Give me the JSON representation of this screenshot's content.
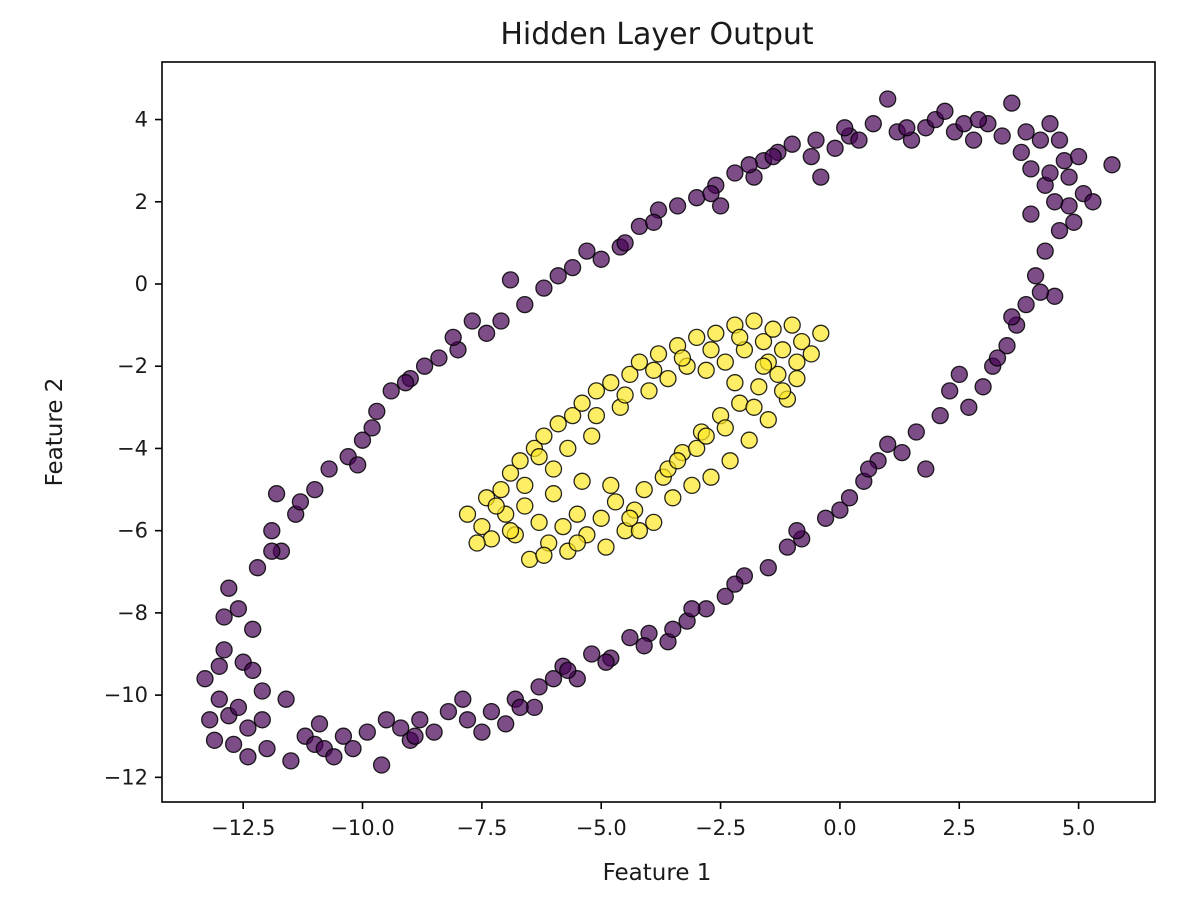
{
  "chart_data": {
    "type": "scatter",
    "title": "Hidden Layer Output",
    "xlabel": "Feature 1",
    "ylabel": "Feature 2",
    "xlim": [
      -14.2,
      6.6
    ],
    "ylim": [
      -12.6,
      5.4
    ],
    "xticks": [
      {
        "value": -12.5,
        "label": "−12.5"
      },
      {
        "value": -10.0,
        "label": "−10.0"
      },
      {
        "value": -7.5,
        "label": "−7.5"
      },
      {
        "value": -5.0,
        "label": "−5.0"
      },
      {
        "value": -2.5,
        "label": "−2.5"
      },
      {
        "value": 0.0,
        "label": "0.0"
      },
      {
        "value": 2.5,
        "label": "2.5"
      },
      {
        "value": 5.0,
        "label": "5.0"
      }
    ],
    "yticks": [
      {
        "value": 4,
        "label": "4"
      },
      {
        "value": 2,
        "label": "2"
      },
      {
        "value": 0,
        "label": "0"
      },
      {
        "value": -2,
        "label": "−2"
      },
      {
        "value": -4,
        "label": "−4"
      },
      {
        "value": -6,
        "label": "−6"
      },
      {
        "value": -8,
        "label": "−8"
      },
      {
        "value": -10,
        "label": "−10"
      },
      {
        "value": -12,
        "label": "−12"
      }
    ],
    "grid": false,
    "legend": "none",
    "marker_alpha": 0.7,
    "series": [
      {
        "color": "#440154",
        "points": [
          [
            -13.3,
            -9.6
          ],
          [
            -13.1,
            -11.1
          ],
          [
            -13.0,
            -10.1
          ],
          [
            -12.9,
            -8.9
          ],
          [
            -12.8,
            -7.4
          ],
          [
            -12.8,
            -10.5
          ],
          [
            -12.7,
            -11.2
          ],
          [
            -12.6,
            -7.9
          ],
          [
            -12.5,
            -9.2
          ],
          [
            -12.4,
            -10.8
          ],
          [
            -12.4,
            -11.5
          ],
          [
            -12.3,
            -8.4
          ],
          [
            -12.2,
            -6.9
          ],
          [
            -12.1,
            -9.9
          ],
          [
            -12.0,
            -11.3
          ],
          [
            -11.9,
            -6.0
          ],
          [
            -11.8,
            -5.1
          ],
          [
            -11.7,
            -6.5
          ],
          [
            -11.6,
            -10.1
          ],
          [
            -11.5,
            -11.6
          ],
          [
            -11.4,
            -5.6
          ],
          [
            -11.2,
            -11.0
          ],
          [
            -11.0,
            -5.0
          ],
          [
            -11.0,
            -11.2
          ],
          [
            -10.8,
            -11.3
          ],
          [
            -10.7,
            -4.5
          ],
          [
            -10.6,
            -11.5
          ],
          [
            -10.4,
            -11.0
          ],
          [
            -10.3,
            -4.2
          ],
          [
            -10.2,
            -11.3
          ],
          [
            -10.0,
            -3.8
          ],
          [
            -9.9,
            -10.9
          ],
          [
            -9.8,
            -3.5
          ],
          [
            -9.6,
            -11.7
          ],
          [
            -9.5,
            -10.6
          ],
          [
            -9.4,
            -2.6
          ],
          [
            -9.2,
            -10.8
          ],
          [
            -9.0,
            -2.3
          ],
          [
            -9.0,
            -11.1
          ],
          [
            -8.8,
            -10.6
          ],
          [
            -8.7,
            -2.0
          ],
          [
            -8.5,
            -10.9
          ],
          [
            -8.4,
            -1.8
          ],
          [
            -8.2,
            -10.4
          ],
          [
            -8.0,
            -1.6
          ],
          [
            -7.8,
            -10.6
          ],
          [
            -7.7,
            -0.9
          ],
          [
            -7.5,
            -10.9
          ],
          [
            -7.4,
            -1.2
          ],
          [
            -7.3,
            -10.4
          ],
          [
            -7.1,
            -0.9
          ],
          [
            -7.0,
            -10.7
          ],
          [
            -6.9,
            0.1
          ],
          [
            -6.8,
            -10.1
          ],
          [
            -6.6,
            -0.5
          ],
          [
            -6.4,
            -10.3
          ],
          [
            -6.2,
            -0.1
          ],
          [
            -6.0,
            -9.6
          ],
          [
            -5.9,
            0.2
          ],
          [
            -5.8,
            -9.3
          ],
          [
            -5.6,
            0.4
          ],
          [
            -5.5,
            -9.6
          ],
          [
            -5.3,
            0.8
          ],
          [
            -5.2,
            -9.0
          ],
          [
            -5.0,
            0.6
          ],
          [
            -4.8,
            -9.1
          ],
          [
            -4.6,
            0.9
          ],
          [
            -4.5,
            1.0
          ],
          [
            -4.4,
            -8.6
          ],
          [
            -4.2,
            1.4
          ],
          [
            -4.0,
            -8.5
          ],
          [
            -3.8,
            1.8
          ],
          [
            -3.6,
            -8.7
          ],
          [
            -3.4,
            1.9
          ],
          [
            -3.2,
            -8.2
          ],
          [
            -3.0,
            2.1
          ],
          [
            -2.8,
            -7.9
          ],
          [
            -2.6,
            2.4
          ],
          [
            -2.5,
            1.9
          ],
          [
            -2.4,
            -7.6
          ],
          [
            -2.2,
            2.7
          ],
          [
            -2.0,
            -7.1
          ],
          [
            -1.8,
            2.6
          ],
          [
            -1.6,
            3.0
          ],
          [
            -1.5,
            -6.9
          ],
          [
            -1.3,
            3.2
          ],
          [
            -1.1,
            -6.4
          ],
          [
            -1.0,
            3.4
          ],
          [
            -0.8,
            -6.2
          ],
          [
            -0.6,
            3.1
          ],
          [
            -0.4,
            2.6
          ],
          [
            -0.3,
            -5.7
          ],
          [
            -0.1,
            3.3
          ],
          [
            0.0,
            -5.5
          ],
          [
            0.2,
            3.6
          ],
          [
            0.2,
            -5.2
          ],
          [
            0.4,
            3.5
          ],
          [
            0.5,
            -4.8
          ],
          [
            0.7,
            3.9
          ],
          [
            0.8,
            -4.3
          ],
          [
            1.0,
            4.5
          ],
          [
            1.0,
            -3.9
          ],
          [
            1.2,
            3.7
          ],
          [
            1.3,
            -4.1
          ],
          [
            1.5,
            3.5
          ],
          [
            1.6,
            -3.6
          ],
          [
            1.8,
            3.8
          ],
          [
            1.8,
            -4.5
          ],
          [
            2.0,
            4.0
          ],
          [
            2.1,
            -3.2
          ],
          [
            2.2,
            4.2
          ],
          [
            2.3,
            -2.6
          ],
          [
            2.4,
            3.7
          ],
          [
            2.5,
            -2.2
          ],
          [
            2.6,
            3.9
          ],
          [
            2.7,
            -3.0
          ],
          [
            2.8,
            3.5
          ],
          [
            3.0,
            -2.5
          ],
          [
            3.1,
            3.9
          ],
          [
            3.2,
            -2.0
          ],
          [
            3.4,
            3.6
          ],
          [
            3.5,
            -1.5
          ],
          [
            3.6,
            4.4
          ],
          [
            3.7,
            -1.0
          ],
          [
            3.8,
            3.2
          ],
          [
            3.9,
            -0.5
          ],
          [
            4.0,
            2.8
          ],
          [
            4.0,
            1.7
          ],
          [
            4.1,
            0.2
          ],
          [
            4.2,
            3.5
          ],
          [
            4.3,
            2.4
          ],
          [
            4.3,
            0.8
          ],
          [
            4.4,
            3.9
          ],
          [
            4.5,
            2.0
          ],
          [
            4.5,
            -0.3
          ],
          [
            4.6,
            1.3
          ],
          [
            4.7,
            3.0
          ],
          [
            4.8,
            2.6
          ],
          [
            4.9,
            1.5
          ],
          [
            5.0,
            3.1
          ],
          [
            5.1,
            2.2
          ],
          [
            5.3,
            2.0
          ],
          [
            5.7,
            2.9
          ],
          [
            -13.2,
            -10.6
          ],
          [
            -13.0,
            -9.3
          ],
          [
            -12.9,
            -8.1
          ],
          [
            -12.6,
            -10.3
          ],
          [
            -12.3,
            -9.4
          ],
          [
            -12.1,
            -10.6
          ],
          [
            -11.9,
            -6.5
          ],
          [
            -11.3,
            -5.3
          ],
          [
            -10.9,
            -10.7
          ],
          [
            -10.1,
            -4.4
          ],
          [
            -9.7,
            -3.1
          ],
          [
            -9.1,
            -2.4
          ],
          [
            -8.9,
            -11.0
          ],
          [
            -8.1,
            -1.3
          ],
          [
            -7.9,
            -10.1
          ],
          [
            -6.7,
            -10.3
          ],
          [
            -6.3,
            -9.8
          ],
          [
            -5.7,
            -9.4
          ],
          [
            -4.9,
            -9.2
          ],
          [
            -4.1,
            -8.8
          ],
          [
            -3.9,
            1.5
          ],
          [
            -3.5,
            -8.4
          ],
          [
            -3.1,
            -7.9
          ],
          [
            -2.7,
            2.2
          ],
          [
            -2.2,
            -7.3
          ],
          [
            -1.9,
            2.9
          ],
          [
            -1.4,
            3.1
          ],
          [
            -0.9,
            -6.0
          ],
          [
            -0.5,
            3.5
          ],
          [
            0.1,
            3.8
          ],
          [
            0.6,
            -4.5
          ],
          [
            1.4,
            3.8
          ],
          [
            2.9,
            4.0
          ],
          [
            3.3,
            -1.8
          ],
          [
            3.9,
            3.7
          ],
          [
            4.2,
            -0.2
          ],
          [
            4.6,
            3.5
          ],
          [
            4.8,
            1.9
          ],
          [
            4.4,
            2.7
          ],
          [
            3.6,
            -0.8
          ]
        ]
      },
      {
        "color": "#fde725",
        "points": [
          [
            -7.8,
            -5.6
          ],
          [
            -7.5,
            -5.9
          ],
          [
            -7.4,
            -5.2
          ],
          [
            -7.3,
            -6.2
          ],
          [
            -7.1,
            -5.0
          ],
          [
            -7.0,
            -5.6
          ],
          [
            -6.9,
            -4.6
          ],
          [
            -6.8,
            -6.1
          ],
          [
            -6.7,
            -4.3
          ],
          [
            -6.6,
            -5.4
          ],
          [
            -6.5,
            -6.7
          ],
          [
            -6.4,
            -4.0
          ],
          [
            -6.3,
            -5.8
          ],
          [
            -6.2,
            -3.7
          ],
          [
            -6.1,
            -6.3
          ],
          [
            -6.0,
            -4.5
          ],
          [
            -5.9,
            -3.4
          ],
          [
            -5.8,
            -5.9
          ],
          [
            -5.7,
            -6.5
          ],
          [
            -5.6,
            -3.2
          ],
          [
            -5.5,
            -5.6
          ],
          [
            -5.4,
            -2.9
          ],
          [
            -5.3,
            -6.1
          ],
          [
            -5.2,
            -3.7
          ],
          [
            -5.1,
            -2.6
          ],
          [
            -5.0,
            -5.7
          ],
          [
            -4.9,
            -6.4
          ],
          [
            -4.8,
            -2.4
          ],
          [
            -4.7,
            -5.3
          ],
          [
            -4.6,
            -3.0
          ],
          [
            -4.5,
            -6.0
          ],
          [
            -4.4,
            -2.2
          ],
          [
            -4.3,
            -5.5
          ],
          [
            -4.2,
            -1.9
          ],
          [
            -4.1,
            -5.0
          ],
          [
            -4.0,
            -2.6
          ],
          [
            -3.9,
            -5.8
          ],
          [
            -3.8,
            -1.7
          ],
          [
            -3.7,
            -4.7
          ],
          [
            -3.6,
            -2.3
          ],
          [
            -3.5,
            -5.2
          ],
          [
            -3.4,
            -1.5
          ],
          [
            -3.3,
            -4.1
          ],
          [
            -3.2,
            -2.0
          ],
          [
            -3.1,
            -4.9
          ],
          [
            -3.0,
            -1.3
          ],
          [
            -2.9,
            -3.6
          ],
          [
            -2.8,
            -2.1
          ],
          [
            -2.7,
            -4.7
          ],
          [
            -2.6,
            -1.2
          ],
          [
            -2.5,
            -3.2
          ],
          [
            -2.4,
            -1.9
          ],
          [
            -2.3,
            -4.3
          ],
          [
            -2.2,
            -1.0
          ],
          [
            -2.1,
            -2.9
          ],
          [
            -2.0,
            -1.6
          ],
          [
            -1.9,
            -3.8
          ],
          [
            -1.8,
            -0.9
          ],
          [
            -1.7,
            -2.5
          ],
          [
            -1.6,
            -1.4
          ],
          [
            -1.5,
            -3.3
          ],
          [
            -1.4,
            -1.1
          ],
          [
            -1.3,
            -2.2
          ],
          [
            -1.2,
            -1.6
          ],
          [
            -1.1,
            -2.8
          ],
          [
            -1.0,
            -1.0
          ],
          [
            -0.9,
            -2.3
          ],
          [
            -0.8,
            -1.4
          ],
          [
            -0.6,
            -1.7
          ],
          [
            -0.4,
            -1.2
          ],
          [
            -7.6,
            -6.3
          ],
          [
            -7.2,
            -5.4
          ],
          [
            -6.9,
            -6.0
          ],
          [
            -6.6,
            -4.9
          ],
          [
            -6.3,
            -4.2
          ],
          [
            -6.0,
            -5.1
          ],
          [
            -5.7,
            -4.0
          ],
          [
            -5.4,
            -4.8
          ],
          [
            -5.1,
            -3.2
          ],
          [
            -4.8,
            -4.9
          ],
          [
            -4.5,
            -2.7
          ],
          [
            -4.2,
            -6.0
          ],
          [
            -3.9,
            -2.1
          ],
          [
            -3.6,
            -4.5
          ],
          [
            -3.3,
            -1.8
          ],
          [
            -3.0,
            -4.0
          ],
          [
            -2.7,
            -1.6
          ],
          [
            -2.4,
            -3.5
          ],
          [
            -2.1,
            -1.3
          ],
          [
            -1.8,
            -3.0
          ],
          [
            -1.5,
            -1.9
          ],
          [
            -1.2,
            -2.6
          ],
          [
            -0.9,
            -1.9
          ],
          [
            -6.2,
            -6.6
          ],
          [
            -5.5,
            -6.3
          ],
          [
            -4.4,
            -5.7
          ],
          [
            -3.4,
            -4.3
          ],
          [
            -2.8,
            -3.7
          ],
          [
            -2.2,
            -2.4
          ],
          [
            -1.6,
            -2.0
          ]
        ]
      }
    ]
  }
}
